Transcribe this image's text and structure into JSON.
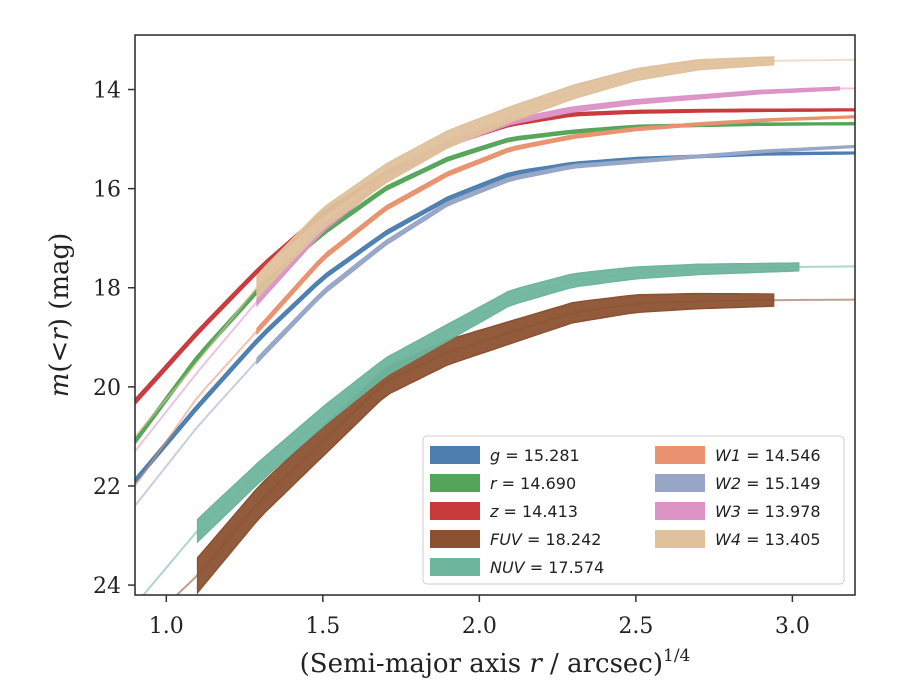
{
  "chart_data": {
    "type": "line",
    "xlabel": "(Semi-major axis r / arcsec)",
    "xlabel_italic_part": "r",
    "xlabel_prefix": "(Semi-major axis ",
    "xlabel_suffix": " / arcsec)",
    "xlabel_superscript": "1/4",
    "ylabel_prefix": "m(",
    "ylabel_lt": "<",
    "ylabel_r": "r",
    "ylabel_suffix": ") (mag)",
    "xlim": [
      0.9,
      3.2
    ],
    "ylim": [
      24.2,
      12.9
    ],
    "y_inverted": true,
    "xticks": [
      1.0,
      1.5,
      2.0,
      2.5,
      3.0
    ],
    "xtick_labels": [
      "1.0",
      "1.5",
      "2.0",
      "2.5",
      "3.0"
    ],
    "yticks": [
      14,
      16,
      18,
      20,
      22,
      24
    ],
    "ytick_labels": [
      "14",
      "16",
      "18",
      "20",
      "22",
      "24"
    ],
    "grid": false,
    "legend_placement": "lower-right",
    "series": [
      {
        "name": "g = 15.281",
        "band": "g",
        "value": "15.281",
        "color": "#4c7fb0",
        "x": [
          0.9,
          1.1,
          1.3,
          1.5,
          1.7,
          1.9,
          2.1,
          2.3,
          2.5,
          2.7,
          2.9,
          3.2
        ],
        "y": [
          21.9,
          20.4,
          19.0,
          17.8,
          16.9,
          16.2,
          15.7,
          15.5,
          15.4,
          15.35,
          15.3,
          15.28
        ],
        "thin_until": 0.9,
        "thick_from": 0.9,
        "thick_to": 3.2,
        "band_width": 0.1
      },
      {
        "name": "r = 14.690",
        "band": "r",
        "value": "14.690",
        "color": "#55a559",
        "x": [
          0.9,
          1.1,
          1.3,
          1.5,
          1.7,
          1.9,
          2.1,
          2.3,
          2.5,
          2.7,
          2.9,
          3.2
        ],
        "y": [
          21.1,
          19.4,
          18.0,
          16.9,
          16.0,
          15.4,
          15.0,
          14.85,
          14.75,
          14.72,
          14.7,
          14.69
        ],
        "thin_until": 0.9,
        "thick_from": 0.9,
        "thick_to": 3.2,
        "band_width": 0.1
      },
      {
        "name": "z = 14.413",
        "band": "z",
        "value": "14.413",
        "color": "#c8393c",
        "x": [
          0.9,
          1.1,
          1.3,
          1.5,
          1.7,
          1.9,
          2.1,
          2.3,
          2.5,
          2.7,
          2.9,
          3.2
        ],
        "y": [
          20.3,
          18.9,
          17.6,
          16.5,
          15.7,
          15.1,
          14.7,
          14.5,
          14.45,
          14.43,
          14.42,
          14.41
        ],
        "thin_until": 0.9,
        "thick_from": 0.9,
        "thick_to": 3.2,
        "band_width": 0.1
      },
      {
        "name": "FUV = 18.242",
        "band": "FUV",
        "value": "18.242",
        "color": "#8b5232",
        "x": [
          0.9,
          1.1,
          1.3,
          1.5,
          1.7,
          1.9,
          2.1,
          2.3,
          2.5,
          2.7,
          2.94,
          3.2
        ],
        "y": [
          25.0,
          23.8,
          22.3,
          21.1,
          19.9,
          19.3,
          18.9,
          18.5,
          18.32,
          18.27,
          18.25,
          18.24
        ],
        "thin_until": 1.1,
        "thick_from": 1.1,
        "thick_to": 2.94,
        "band_width": 0.7
      },
      {
        "name": "NUV = 17.574",
        "band": "NUV",
        "value": "17.574",
        "color": "#6eb59e",
        "x": [
          0.9,
          1.1,
          1.3,
          1.5,
          1.7,
          1.9,
          2.1,
          2.3,
          2.5,
          2.7,
          3.02,
          3.2
        ],
        "y": [
          24.4,
          22.9,
          21.7,
          20.6,
          19.6,
          18.9,
          18.2,
          17.85,
          17.7,
          17.63,
          17.58,
          17.57
        ],
        "thin_until": 1.1,
        "thick_from": 1.1,
        "thick_to": 3.02,
        "band_width": 0.45
      },
      {
        "name": "W1 = 14.546",
        "band": "W1",
        "value": "14.546",
        "color": "#e8926f",
        "x": [
          0.9,
          1.1,
          1.3,
          1.5,
          1.7,
          1.9,
          2.1,
          2.3,
          2.5,
          2.7,
          2.9,
          3.2
        ],
        "y": [
          22.0,
          20.2,
          18.8,
          17.4,
          16.4,
          15.7,
          15.2,
          14.95,
          14.8,
          14.7,
          14.62,
          14.55
        ],
        "thin_until": 1.29,
        "thick_from": 1.29,
        "thick_to": 3.2,
        "band_width": 0.1
      },
      {
        "name": "W2 = 15.149",
        "band": "W2",
        "value": "15.149",
        "color": "#97a6c7",
        "x": [
          0.9,
          1.1,
          1.3,
          1.5,
          1.7,
          1.9,
          2.1,
          2.3,
          2.5,
          2.7,
          2.9,
          3.2
        ],
        "y": [
          22.4,
          20.8,
          19.4,
          18.1,
          17.1,
          16.3,
          15.8,
          15.55,
          15.45,
          15.35,
          15.25,
          15.15
        ],
        "thin_until": 1.29,
        "thick_from": 1.29,
        "thick_to": 3.2,
        "band_width": 0.1
      },
      {
        "name": "W3 = 13.978",
        "band": "W3",
        "value": "13.978",
        "color": "#dc93c6",
        "x": [
          0.9,
          1.1,
          1.3,
          1.5,
          1.7,
          1.9,
          2.1,
          2.3,
          2.5,
          2.7,
          2.9,
          3.15
        ],
        "y": [
          21.3,
          19.7,
          18.2,
          16.8,
          15.8,
          15.1,
          14.65,
          14.4,
          14.25,
          14.15,
          14.05,
          13.98
        ],
        "thin_until": 1.29,
        "thick_from": 1.29,
        "thick_to": 3.15,
        "band_width": 0.15
      },
      {
        "name": "W4 = 13.405",
        "band": "W4",
        "value": "13.405",
        "color": "#dfc19c",
        "x": [
          0.9,
          1.1,
          1.3,
          1.5,
          1.7,
          1.9,
          2.1,
          2.3,
          2.5,
          2.7,
          2.94,
          3.2
        ],
        "y": [
          21.0,
          19.5,
          17.9,
          16.6,
          15.7,
          15.0,
          14.5,
          14.05,
          13.7,
          13.5,
          13.42,
          13.4
        ],
        "thin_until": 1.29,
        "thick_from": 1.29,
        "thick_to": 2.94,
        "band_width": 0.45
      }
    ],
    "legend_left_column": [
      {
        "band": "g",
        "value": "15.281",
        "color": "#4c7fb0"
      },
      {
        "band": "r",
        "value": "14.690",
        "color": "#55a559"
      },
      {
        "band": "z",
        "value": "14.413",
        "color": "#c8393c"
      },
      {
        "band": "FUV",
        "value": "18.242",
        "color": "#8b5232"
      },
      {
        "band": "NUV",
        "value": "17.574",
        "color": "#6eb59e"
      }
    ],
    "legend_right_column": [
      {
        "band": "W1",
        "value": "14.546",
        "color": "#e8926f"
      },
      {
        "band": "W2",
        "value": "15.149",
        "color": "#97a6c7"
      },
      {
        "band": "W3",
        "value": "13.978",
        "color": "#dc93c6"
      },
      {
        "band": "W4",
        "value": "13.405",
        "color": "#dfc19c"
      }
    ]
  }
}
